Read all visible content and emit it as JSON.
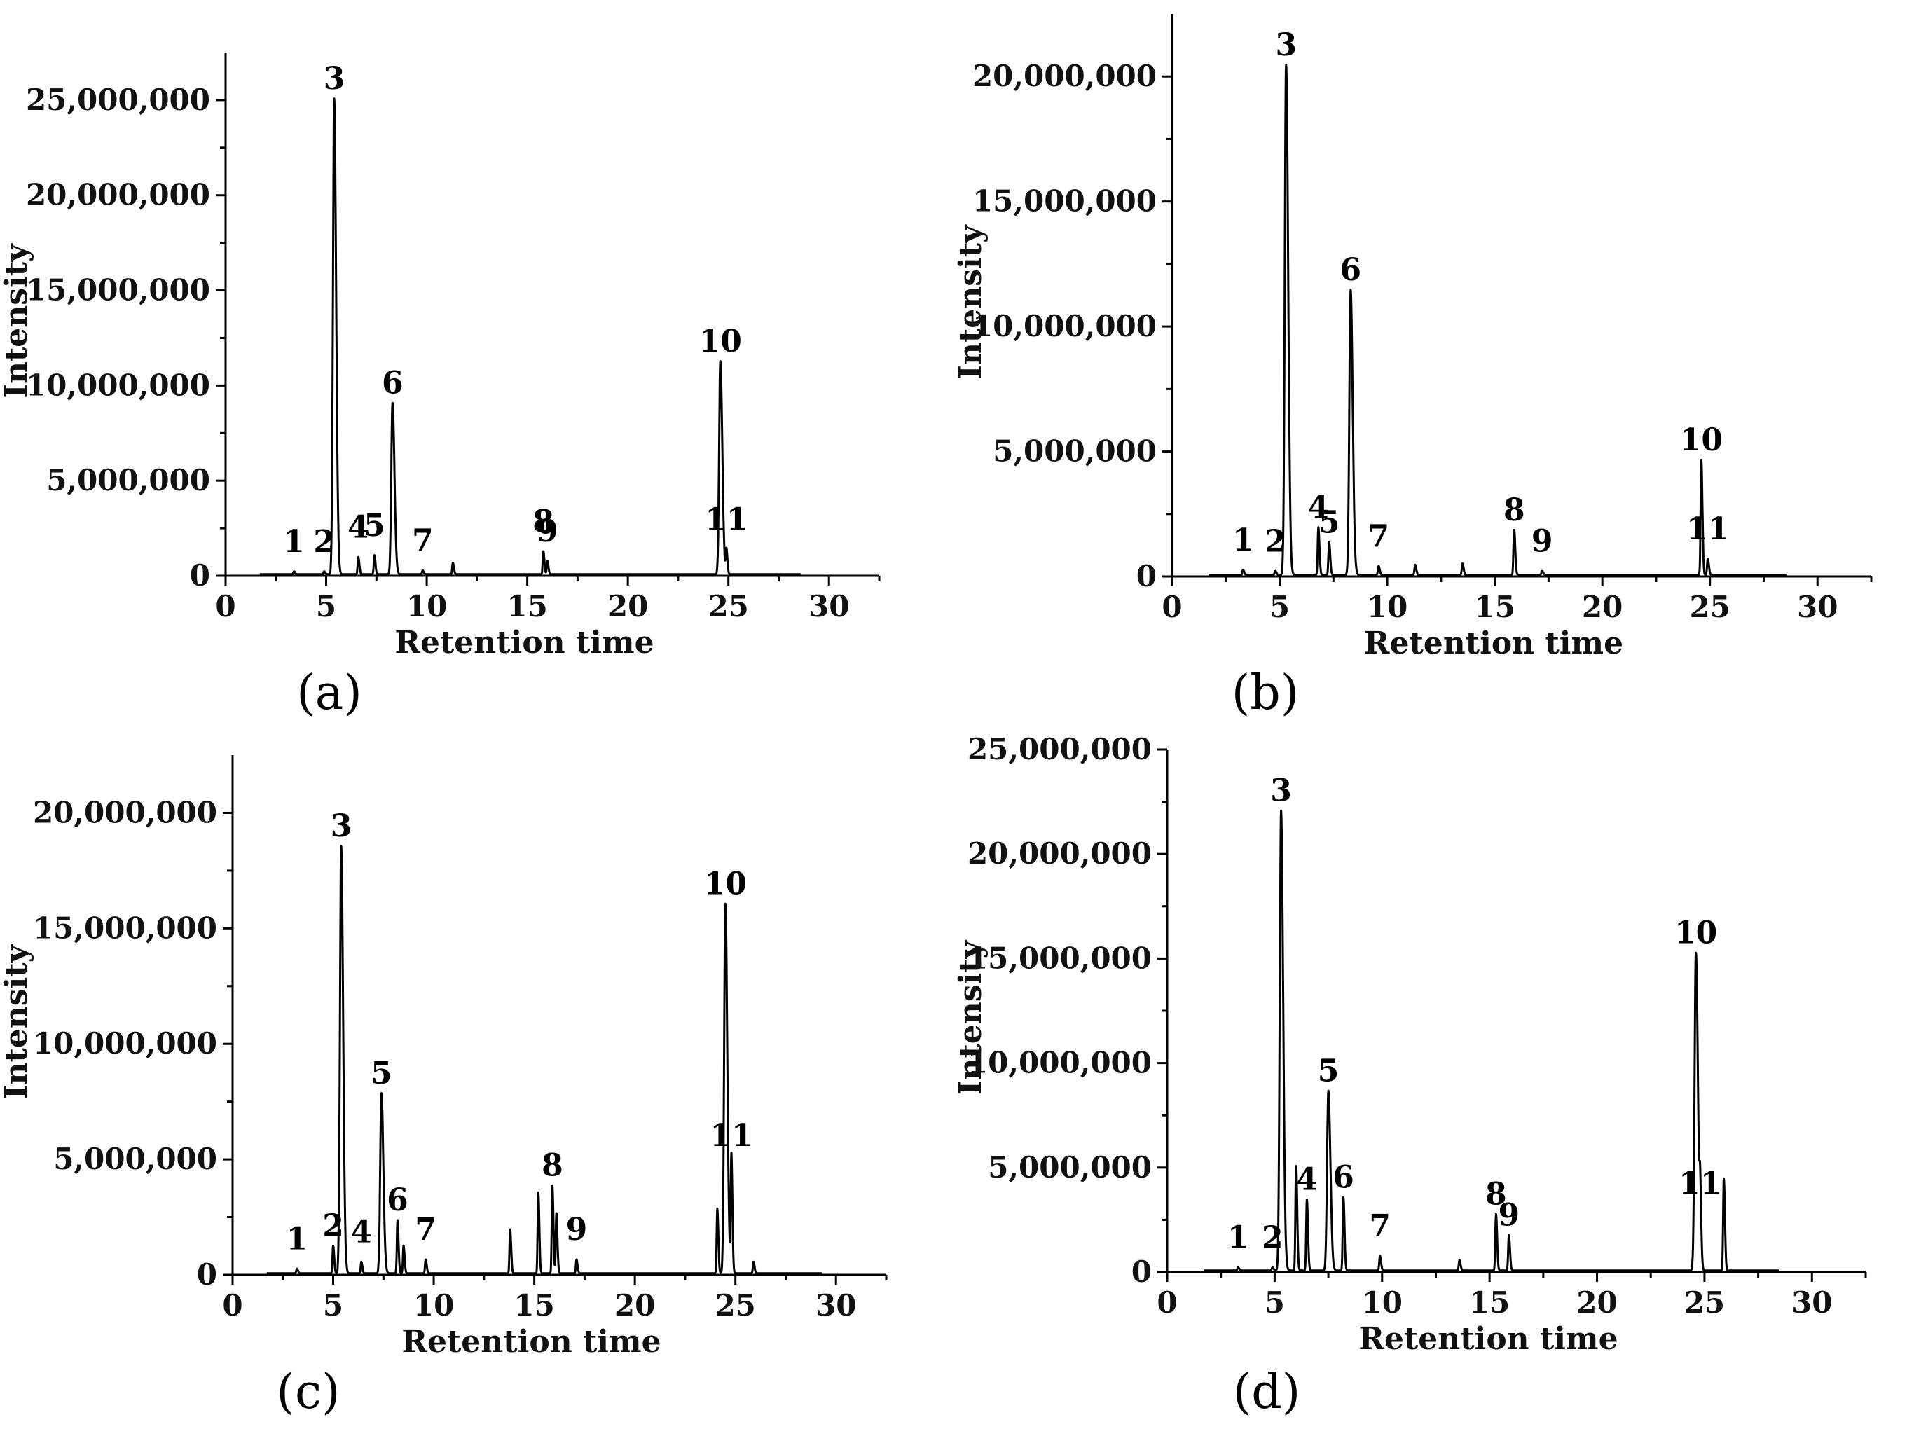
{
  "chart_data": [
    {
      "type": "line",
      "panel": "(a)",
      "xlabel": "Retention time",
      "ylabel": "Intensity",
      "xlim": [
        0,
        32.5
      ],
      "ylim": [
        0,
        27500000
      ],
      "xticks": [
        0,
        5,
        10,
        15,
        20,
        25,
        30
      ],
      "yticks": [
        0,
        5000000,
        10000000,
        15000000,
        20000000,
        25000000
      ],
      "ytick_labels": [
        "0",
        "5,000,000",
        "10,000,000",
        "15,000,000",
        "20,000,000",
        "25,000,000"
      ],
      "x_range": [
        1.7,
        28.6
      ],
      "peaks": [
        {
          "label": "1",
          "x": 3.4,
          "y": 150000
        },
        {
          "label": "2",
          "x": 4.9,
          "y": 150000
        },
        {
          "label": "3",
          "x": 5.4,
          "y": 25000000
        },
        {
          "label": "4",
          "x": 6.6,
          "y": 900000
        },
        {
          "label": "5",
          "x": 7.4,
          "y": 1000000
        },
        {
          "label": "6",
          "x": 8.3,
          "y": 9000000
        },
        {
          "label": "7",
          "x": 9.8,
          "y": 200000
        },
        {
          "label": "",
          "x": 11.3,
          "y": 600000
        },
        {
          "label": "8",
          "x": 15.8,
          "y": 1200000
        },
        {
          "label": "9",
          "x": 16.0,
          "y": 700000
        },
        {
          "label": "10",
          "x": 24.6,
          "y": 11200000
        },
        {
          "label": "11",
          "x": 24.9,
          "y": 1300000
        }
      ]
    },
    {
      "type": "line",
      "panel": "(b)",
      "xlabel": "Retention time",
      "ylabel": "Intensity",
      "xlim": [
        0,
        32.5
      ],
      "ylim": [
        0,
        22500000
      ],
      "xticks": [
        0,
        5,
        10,
        15,
        20,
        25,
        30
      ],
      "yticks": [
        0,
        5000000,
        10000000,
        15000000,
        20000000
      ],
      "ytick_labels": [
        "0",
        "5,000,000",
        "10,000,000",
        "15,000,000",
        "20,000,000"
      ],
      "x_range": [
        1.7,
        28.6
      ],
      "peaks": [
        {
          "label": "1",
          "x": 3.3,
          "y": 200000
        },
        {
          "label": "2",
          "x": 4.8,
          "y": 150000
        },
        {
          "label": "3",
          "x": 5.3,
          "y": 20400000
        },
        {
          "label": "4",
          "x": 6.8,
          "y": 1900000
        },
        {
          "label": "5",
          "x": 7.3,
          "y": 1300000
        },
        {
          "label": "6",
          "x": 8.3,
          "y": 11400000
        },
        {
          "label": "7",
          "x": 9.6,
          "y": 350000
        },
        {
          "label": "",
          "x": 11.3,
          "y": 400000
        },
        {
          "label": "",
          "x": 13.5,
          "y": 450000
        },
        {
          "label": "8",
          "x": 15.9,
          "y": 1800000
        },
        {
          "label": "9",
          "x": 17.2,
          "y": 150000
        },
        {
          "label": "10",
          "x": 24.6,
          "y": 4600000
        },
        {
          "label": "11",
          "x": 24.9,
          "y": 650000
        }
      ]
    },
    {
      "type": "line",
      "panel": "(c)",
      "xlabel": "Retention time",
      "ylabel": "Intensity",
      "xlim": [
        0,
        32.5
      ],
      "ylim": [
        0,
        22500000
      ],
      "xticks": [
        0,
        5,
        10,
        15,
        20,
        25,
        30
      ],
      "yticks": [
        0,
        5000000,
        10000000,
        15000000,
        20000000
      ],
      "ytick_labels": [
        "0",
        "5,000,000",
        "10,000,000",
        "15,000,000",
        "20,000,000"
      ],
      "x_range": [
        1.7,
        29.3
      ],
      "peaks": [
        {
          "label": "1",
          "x": 3.2,
          "y": 200000
        },
        {
          "label": "2",
          "x": 5.0,
          "y": 1200000
        },
        {
          "label": "3",
          "x": 5.4,
          "y": 18500000
        },
        {
          "label": "4",
          "x": 6.4,
          "y": 500000
        },
        {
          "label": "5",
          "x": 7.4,
          "y": 7800000
        },
        {
          "label": "6",
          "x": 8.2,
          "y": 2300000
        },
        {
          "label": "",
          "x": 8.5,
          "y": 1200000
        },
        {
          "label": "7",
          "x": 9.6,
          "y": 600000
        },
        {
          "label": "",
          "x": 13.8,
          "y": 1900000
        },
        {
          "label": "",
          "x": 15.2,
          "y": 3500000
        },
        {
          "label": "8",
          "x": 15.9,
          "y": 3800000
        },
        {
          "label": "",
          "x": 16.1,
          "y": 2600000
        },
        {
          "label": "9",
          "x": 17.1,
          "y": 600000
        },
        {
          "label": "",
          "x": 24.1,
          "y": 2800000
        },
        {
          "label": "10",
          "x": 24.5,
          "y": 16000000
        },
        {
          "label": "11",
          "x": 24.8,
          "y": 5100000
        },
        {
          "label": "",
          "x": 25.9,
          "y": 500000
        }
      ]
    },
    {
      "type": "line",
      "panel": "(d)",
      "xlabel": "Retention time",
      "ylabel": "Intensity",
      "xlim": [
        0,
        32.5
      ],
      "ylim": [
        0,
        25000000
      ],
      "xticks": [
        0,
        5,
        10,
        15,
        20,
        25,
        30
      ],
      "yticks": [
        0,
        5000000,
        10000000,
        15000000,
        20000000,
        25000000
      ],
      "ytick_labels": [
        "0",
        "5,000,000",
        "10,000,000",
        "15,000,000",
        "20,000,000",
        "25,000,000"
      ],
      "x_range": [
        1.7,
        28.5
      ],
      "peaks": [
        {
          "label": "1",
          "x": 3.3,
          "y": 150000
        },
        {
          "label": "2",
          "x": 4.9,
          "y": 150000
        },
        {
          "label": "3",
          "x": 5.3,
          "y": 22000000
        },
        {
          "label": "",
          "x": 6.0,
          "y": 5000000
        },
        {
          "label": "4",
          "x": 6.5,
          "y": 3400000
        },
        {
          "label": "5",
          "x": 7.5,
          "y": 8600000
        },
        {
          "label": "6",
          "x": 8.2,
          "y": 3500000
        },
        {
          "label": "7",
          "x": 9.9,
          "y": 700000
        },
        {
          "label": "",
          "x": 13.6,
          "y": 500000
        },
        {
          "label": "8",
          "x": 15.3,
          "y": 2700000
        },
        {
          "label": "9",
          "x": 15.9,
          "y": 1700000
        },
        {
          "label": "10",
          "x": 24.6,
          "y": 15200000
        },
        {
          "label": "11",
          "x": 24.8,
          "y": 3200000
        },
        {
          "label": "",
          "x": 25.9,
          "y": 4400000
        }
      ]
    }
  ]
}
